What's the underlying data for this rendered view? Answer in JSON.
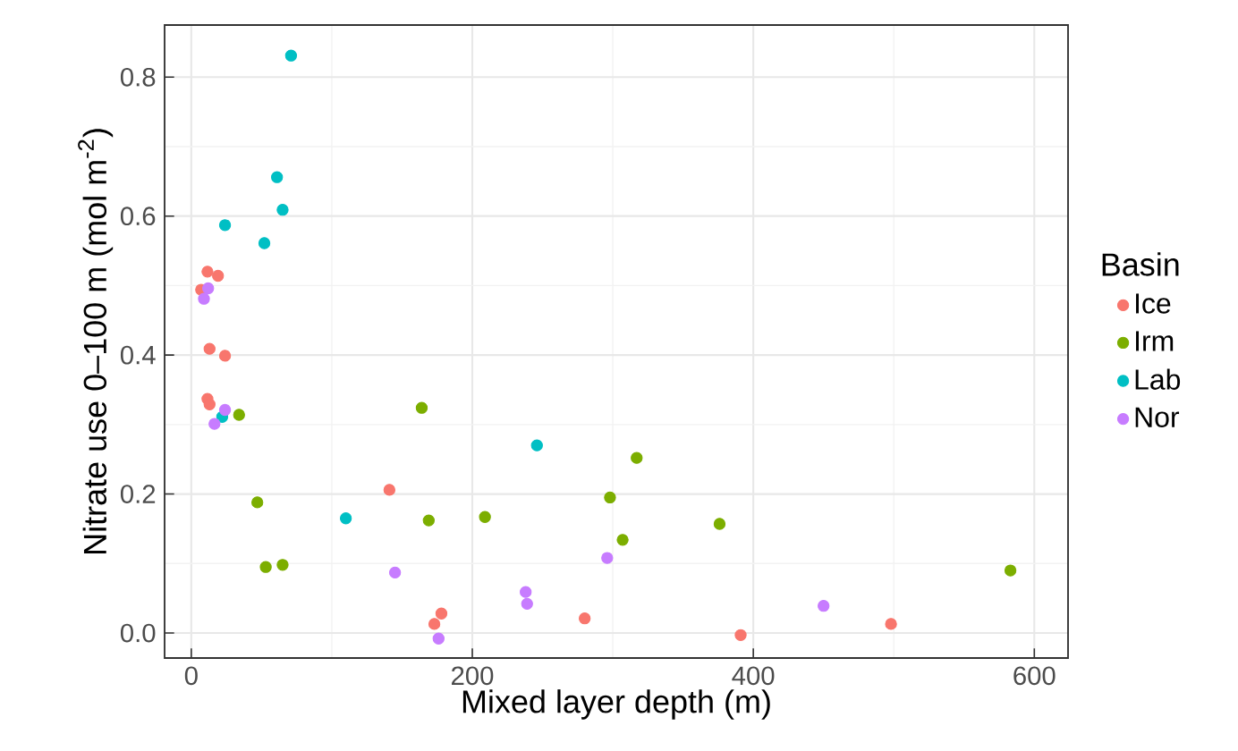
{
  "chart_data": {
    "type": "scatter",
    "xlabel": "Mixed layer depth (m)",
    "ylabel": "Nitrate use 0–100 m (mol m$^{-2}$)",
    "legend_title": "Basin",
    "xlim": [
      -19,
      624
    ],
    "ylim": [
      -0.036,
      0.875
    ],
    "xticks": [
      0,
      200,
      400,
      600
    ],
    "yticks": [
      {
        "value": 0,
        "label": "0.0"
      },
      0.2,
      0.4,
      0.6,
      0.8
    ],
    "grid": true,
    "legend": "right",
    "marker": "circle",
    "series": [
      {
        "name": "Ice",
        "color": "#f8766d",
        "x": [
          11.5,
          19,
          7,
          13,
          24,
          11.5,
          13,
          141,
          178,
          173,
          280,
          391,
          498
        ],
        "values": [
          0.52,
          0.514,
          0.494,
          0.409,
          0.399,
          0.337,
          0.329,
          0.206,
          0.028,
          0.013,
          0.021,
          -0.003,
          0.013
        ]
      },
      {
        "name": "Irm",
        "color": "#7cae00",
        "x": [
          34,
          164,
          47,
          53,
          65,
          169,
          209,
          298,
          307,
          317,
          376,
          583
        ],
        "values": [
          0.314,
          0.324,
          0.188,
          0.095,
          0.098,
          0.162,
          0.167,
          0.195,
          0.134,
          0.252,
          0.157,
          0.09
        ]
      },
      {
        "name": "Lab",
        "color": "#00bfc4",
        "x": [
          71,
          61,
          65,
          24,
          52,
          22,
          110,
          246
        ],
        "values": [
          0.831,
          0.656,
          0.609,
          0.587,
          0.561,
          0.311,
          0.165,
          0.27
        ]
      },
      {
        "name": "Nor",
        "color": "#c77cff",
        "x": [
          12,
          9,
          24,
          16.5,
          145,
          238,
          239,
          176,
          296,
          450
        ],
        "values": [
          0.496,
          0.481,
          0.321,
          0.301,
          0.087,
          0.059,
          0.042,
          -0.008,
          0.108,
          0.039
        ]
      }
    ]
  }
}
